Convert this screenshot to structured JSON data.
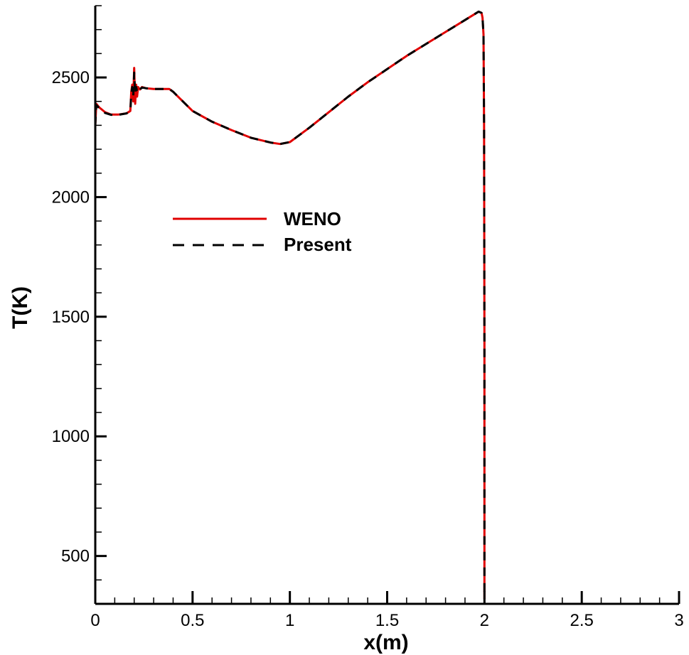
{
  "chart_data": {
    "type": "line",
    "title": "",
    "xlabel": "x(m)",
    "ylabel": "T(K)",
    "xlim": [
      0,
      3
    ],
    "ylim": [
      300,
      2800
    ],
    "xticks": [
      0,
      0.5,
      1,
      1.5,
      2,
      2.5,
      3
    ],
    "xtick_labels": [
      "0",
      "0.5",
      "1",
      "1.5",
      "2",
      "2.5",
      "3"
    ],
    "yticks": [
      500,
      1000,
      1500,
      2000,
      2500
    ],
    "ytick_labels": [
      "500",
      "1000",
      "1500",
      "2000",
      "2500"
    ],
    "grid": false,
    "legend_position": "upper-left",
    "series": [
      {
        "name": "WENO",
        "color": "#e00000",
        "style": "solid",
        "x": [
          0,
          0.005,
          0.02,
          0.05,
          0.08,
          0.12,
          0.16,
          0.18,
          0.185,
          0.19,
          0.195,
          0.2,
          0.205,
          0.21,
          0.215,
          0.22,
          0.23,
          0.24,
          0.26,
          0.3,
          0.35,
          0.38,
          0.4,
          0.45,
          0.5,
          0.6,
          0.7,
          0.8,
          0.9,
          0.95,
          1.0,
          1.1,
          1.2,
          1.3,
          1.4,
          1.5,
          1.6,
          1.7,
          1.8,
          1.9,
          1.95,
          1.97,
          1.985,
          1.99,
          1.995,
          1.998,
          2.0,
          2.0
        ],
        "y": [
          2300,
          2390,
          2375,
          2355,
          2345,
          2345,
          2350,
          2360,
          2440,
          2470,
          2400,
          2540,
          2390,
          2470,
          2420,
          2460,
          2450,
          2460,
          2455,
          2452,
          2452,
          2452,
          2440,
          2400,
          2360,
          2315,
          2280,
          2248,
          2228,
          2222,
          2230,
          2290,
          2355,
          2420,
          2480,
          2535,
          2590,
          2640,
          2690,
          2740,
          2765,
          2775,
          2770,
          2750,
          2680,
          2300,
          1400,
          320
        ]
      },
      {
        "name": "Present",
        "color": "#000000",
        "style": "dashed",
        "x": [
          0,
          0.005,
          0.02,
          0.05,
          0.08,
          0.12,
          0.16,
          0.18,
          0.185,
          0.19,
          0.195,
          0.2,
          0.205,
          0.21,
          0.215,
          0.22,
          0.23,
          0.24,
          0.26,
          0.3,
          0.35,
          0.38,
          0.4,
          0.45,
          0.5,
          0.6,
          0.7,
          0.8,
          0.9,
          0.95,
          1.0,
          1.1,
          1.2,
          1.3,
          1.4,
          1.5,
          1.6,
          1.7,
          1.8,
          1.9,
          1.95,
          1.97,
          1.985,
          1.99,
          1.995,
          1.998,
          2.0,
          2.0
        ],
        "y": [
          2300,
          2385,
          2372,
          2352,
          2344,
          2344,
          2350,
          2358,
          2430,
          2460,
          2420,
          2520,
          2430,
          2460,
          2440,
          2455,
          2450,
          2458,
          2455,
          2452,
          2452,
          2452,
          2440,
          2400,
          2360,
          2315,
          2280,
          2248,
          2228,
          2222,
          2230,
          2290,
          2355,
          2420,
          2480,
          2535,
          2590,
          2640,
          2690,
          2740,
          2765,
          2775,
          2770,
          2750,
          2680,
          2300,
          1400,
          320
        ]
      }
    ]
  }
}
